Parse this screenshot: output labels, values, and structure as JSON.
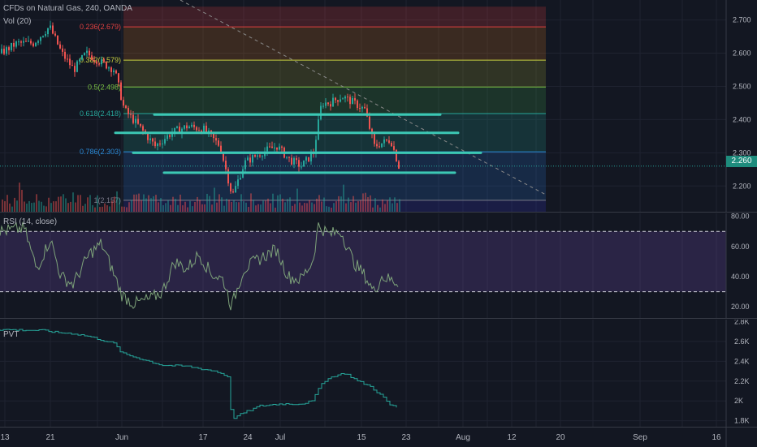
{
  "header": {
    "symbol_line": "CFDs on Natural Gas, 240, OANDA",
    "vol_label": "Vol (20)"
  },
  "price_pane": {
    "axis_ticks": [
      "2.700",
      "2.600",
      "2.500",
      "2.400",
      "2.300",
      "2.200"
    ],
    "last_price": "2.260",
    "fib_levels": [
      {
        "label": "0.236(2.679)",
        "price": 2.679,
        "color": "#e04040"
      },
      {
        "label": "0.382(2.579)",
        "price": 2.579,
        "color": "#c8d040"
      },
      {
        "label": "0.5(2.498)",
        "price": 2.498,
        "color": "#7ac043"
      },
      {
        "label": "0.618(2.418)",
        "price": 2.418,
        "color": "#26a69a"
      },
      {
        "label": "0.786(2.303)",
        "price": 2.303,
        "color": "#2a8ad6"
      },
      {
        "label": "1(2.157)",
        "price": 2.157,
        "color": "#7a7a8a"
      }
    ],
    "fib_top_price": 2.74,
    "support_lines": [
      2.415,
      2.36,
      2.3,
      2.24
    ]
  },
  "rsi_pane": {
    "label": "RSI (14, close)",
    "axis_ticks": [
      "80.00",
      "60.00",
      "40.00",
      "20.00"
    ],
    "upper_band": 70,
    "lower_band": 30
  },
  "pvt_pane": {
    "label": "PVT",
    "axis_ticks": [
      "2.8K",
      "2.6K",
      "2.4K",
      "2.2K",
      "2K",
      "1.8K"
    ]
  },
  "time_axis": {
    "ticks": [
      "13",
      "21",
      "Jun",
      "17",
      "24",
      "Jul",
      "15",
      "23",
      "Aug",
      "12",
      "20",
      "Sep",
      "16"
    ]
  },
  "colors": {
    "background": "#131722",
    "up": "#26a69a",
    "down": "#ef5350",
    "rsi_line": "#7ea37a",
    "pvt_line": "#26a69a",
    "support": "#3cc8b4"
  }
}
